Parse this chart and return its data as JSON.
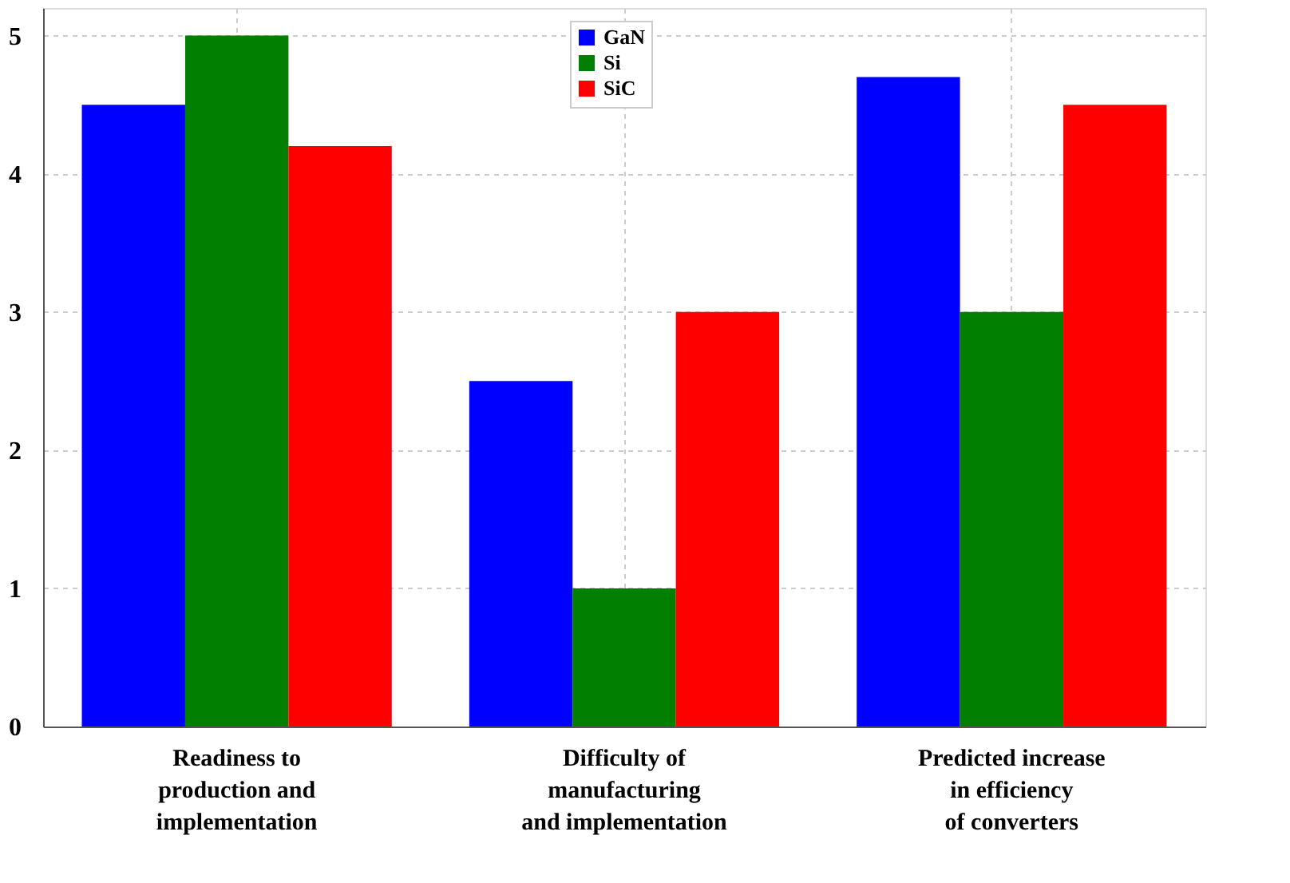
{
  "chart_data": {
    "type": "bar",
    "categories": [
      "Readiness to\nproduction and\nimplementation",
      "Difficulty of\nmanufacturing\nand implementation",
      "Predicted increase\nin efficiency\nof converters"
    ],
    "series": [
      {
        "name": "GaN",
        "color": "#0000ff",
        "values": [
          4.5,
          2.5,
          4.7
        ]
      },
      {
        "name": "Si",
        "color": "#007f00",
        "values": [
          5,
          1,
          3
        ]
      },
      {
        "name": "SiC",
        "color": "#ff0000",
        "values": [
          4.2,
          3,
          4.5
        ]
      }
    ],
    "ylim": [
      0,
      5.2
    ],
    "yticks": [
      0,
      1,
      2,
      3,
      4,
      5
    ],
    "grid": true,
    "legend": "top"
  }
}
